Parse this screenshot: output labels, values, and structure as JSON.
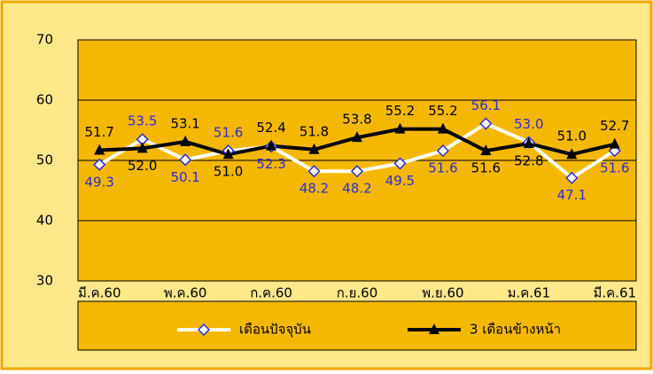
{
  "chart_data": {
    "type": "line",
    "categories": [
      "มี.ค.60",
      null,
      "พ.ค.60",
      null,
      "ก.ค.60",
      null,
      "ก.ย.60",
      null,
      "พ.ย.60",
      null,
      "ม.ค.61",
      null,
      "มี.ค.61"
    ],
    "series": [
      {
        "name": "เดือนปัจจุบัน",
        "color": "#ffffff",
        "label_color": "#2b2bd6",
        "marker": "diamond",
        "values": [
          49.3,
          53.5,
          50.1,
          51.6,
          52.3,
          48.2,
          48.2,
          49.5,
          51.6,
          56.1,
          53.0,
          47.1,
          51.6
        ],
        "value_labels": [
          "49.3",
          "53.5",
          "50.1",
          "51.6",
          "52.3",
          "48.2",
          "48.2",
          "49.5",
          "51.6",
          "56.1",
          "53.0",
          "47.1",
          "51.6"
        ]
      },
      {
        "name": "3 เดือนข้างหน้า",
        "color": "#000000",
        "label_color": "#000000",
        "marker": "triangle",
        "values": [
          51.7,
          52.0,
          53.1,
          51.0,
          52.4,
          51.8,
          53.8,
          55.2,
          55.2,
          51.6,
          52.8,
          51.0,
          52.7
        ],
        "value_labels": [
          "51.7",
          "52.0",
          "53.1",
          "51.0",
          "52.4",
          "51.8",
          "53.8",
          "55.2",
          "55.2",
          "51.6",
          "52.8",
          "51.0",
          "52.7"
        ]
      }
    ],
    "ylim": [
      30,
      70
    ],
    "yticks": [
      30,
      40,
      50,
      60,
      70
    ],
    "grid": true,
    "legend": "bottom"
  }
}
